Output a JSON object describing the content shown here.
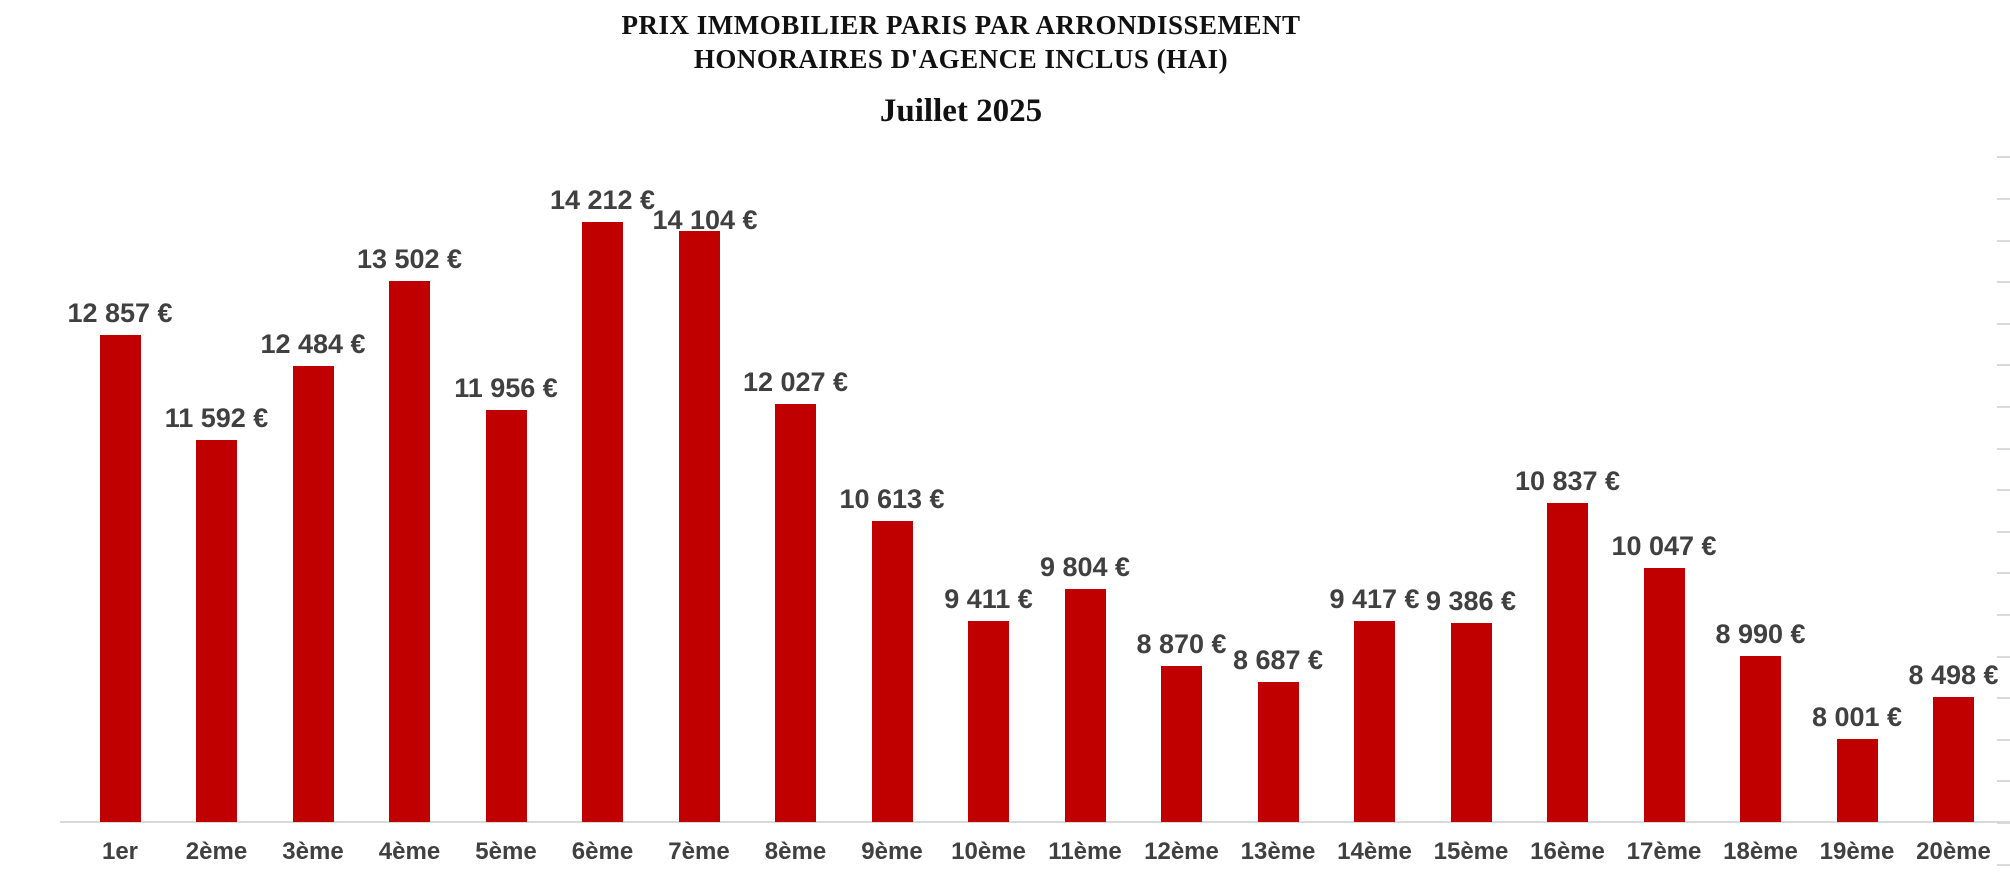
{
  "chart_data": {
    "type": "bar",
    "title_line1": "PRIX IMMOBILIER PARIS PAR ARRONDISSEMENT",
    "title_line2": "HONORAIRES D'AGENCE INCLUS (HAI)",
    "subtitle": "Juillet 2025",
    "xlabel": "",
    "ylabel": "",
    "categories": [
      "1er",
      "2ème",
      "3ème",
      "4ème",
      "5ème",
      "6ème",
      "7ème",
      "8ème",
      "9ème",
      "10ème",
      "11ème",
      "12ème",
      "13ème",
      "14ème",
      "15ème",
      "16ème",
      "17ème",
      "18ème",
      "19ème",
      "20ème"
    ],
    "values": [
      12857,
      11592,
      12484,
      13502,
      11956,
      14212,
      14104,
      12027,
      10613,
      9411,
      9804,
      8870,
      8687,
      9417,
      9386,
      10837,
      10047,
      8990,
      8001,
      8498
    ],
    "value_labels": [
      "12 857 €",
      "11 592 €",
      "12 484 €",
      "13 502 €",
      "11 956 €",
      "14 212 €",
      "14 104 €",
      "12 027 €",
      "10 613 €",
      "9 411 €",
      "9 804 €",
      "8 870 €",
      "8 687 €",
      "9 417 €",
      "9 386 €",
      "10 837 €",
      "10 047 €",
      "8 990 €",
      "8 001 €",
      "8 498 €"
    ],
    "unit": "€",
    "ylim": [
      7000,
      15500
    ],
    "y_axis": {
      "baseline_value": 7000,
      "tick_min": 6500,
      "tick_max": 15000,
      "tick_step": 500,
      "tick_labels_visible": false,
      "ticks_position": "right-edge"
    },
    "grid": "off",
    "legend": "none",
    "colors": {
      "bar": "#C00000",
      "data_label": "#404040",
      "axis_label": "#404040",
      "axis_line": "#D9D9D9",
      "tick": "#D9D9D9",
      "title": "#111111",
      "background": "#FFFFFF"
    }
  }
}
